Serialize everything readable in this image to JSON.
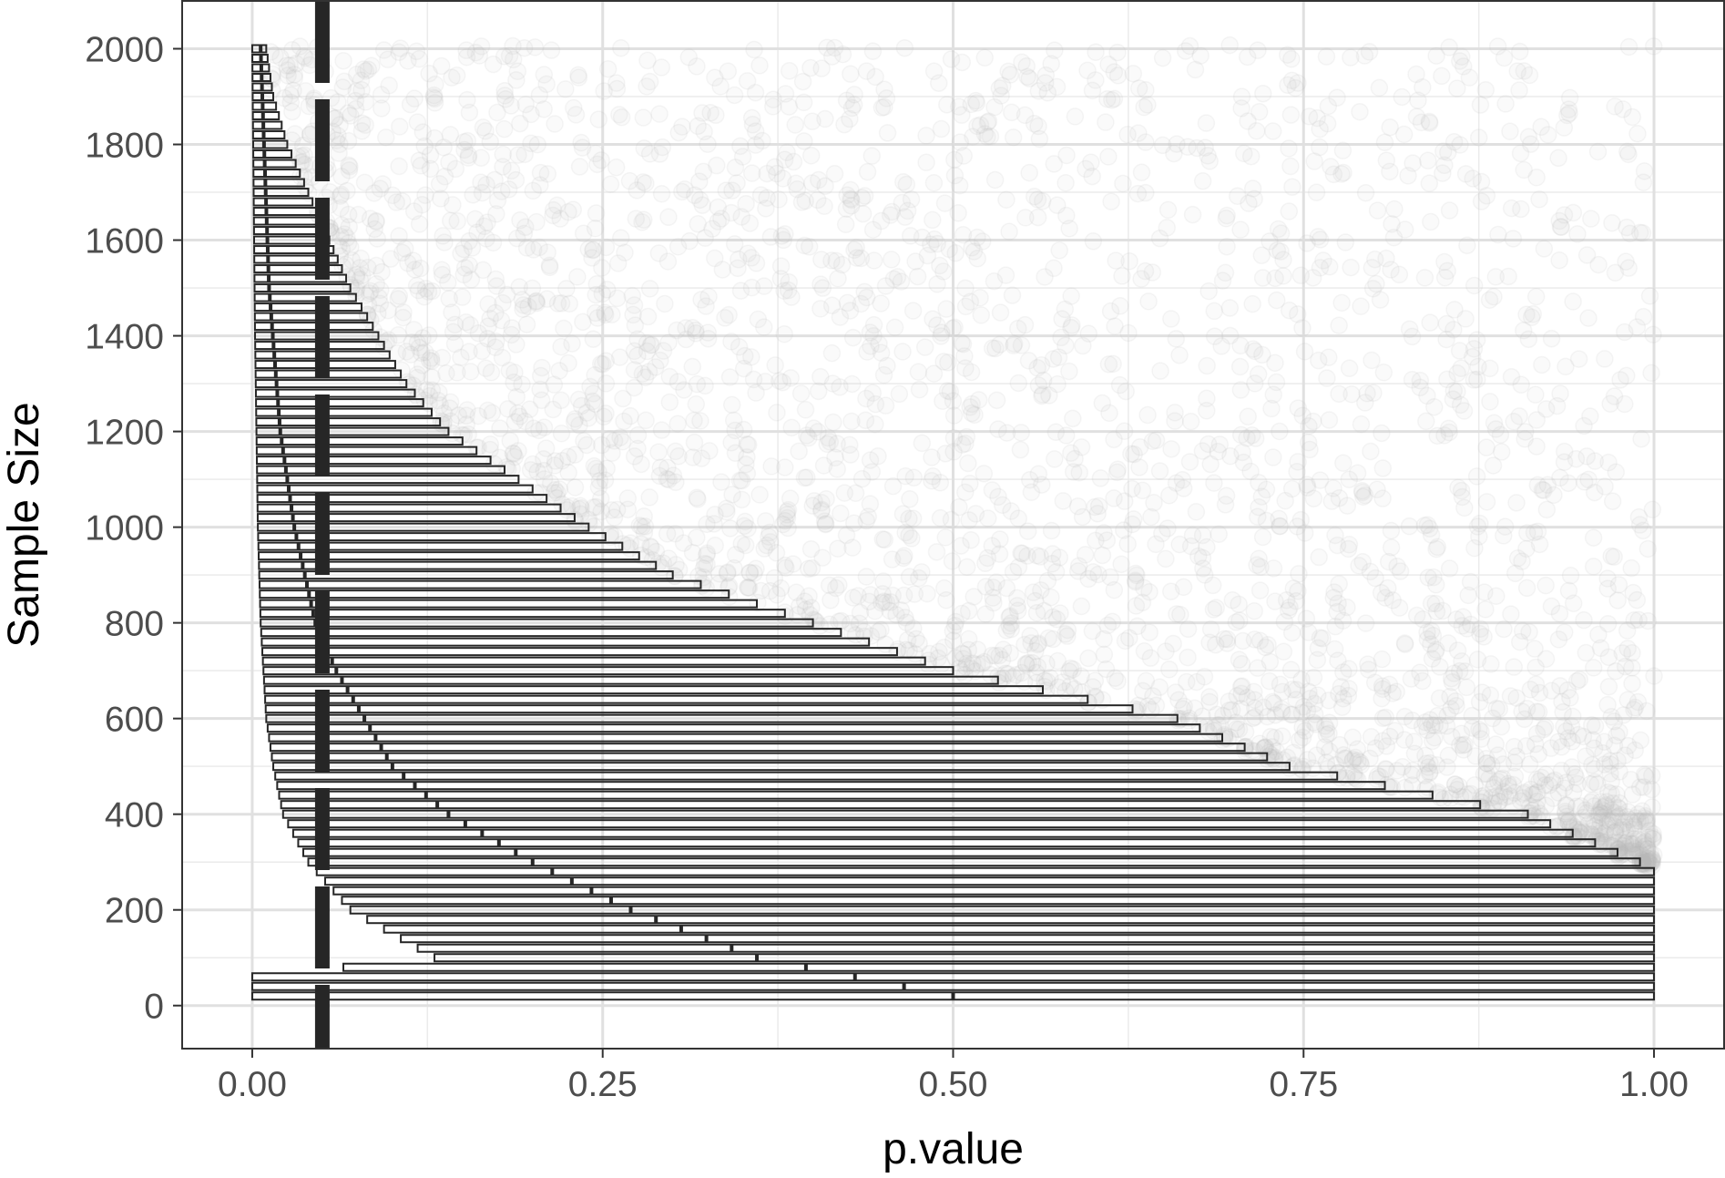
{
  "chart_data": {
    "type": "scatter",
    "xlabel": "p.value",
    "ylabel": "Sample Size",
    "xlim": [
      -0.05,
      1.05
    ],
    "ylim": [
      -90,
      2100
    ],
    "x_ticks": [
      {
        "value": 0.0,
        "label": "0.00"
      },
      {
        "value": 0.25,
        "label": "0.25"
      },
      {
        "value": 0.5,
        "label": "0.50"
      },
      {
        "value": 0.75,
        "label": "0.75"
      },
      {
        "value": 1.0,
        "label": "1.00"
      }
    ],
    "y_ticks": [
      {
        "value": 0,
        "label": "0"
      },
      {
        "value": 200,
        "label": "200"
      },
      {
        "value": 400,
        "label": "400"
      },
      {
        "value": 600,
        "label": "600"
      },
      {
        "value": 800,
        "label": "800"
      },
      {
        "value": 1000,
        "label": "1000"
      },
      {
        "value": 1200,
        "label": "1200"
      },
      {
        "value": 1400,
        "label": "1400"
      },
      {
        "value": 1600,
        "label": "1600"
      },
      {
        "value": 1800,
        "label": "1800"
      },
      {
        "value": 2000,
        "label": "2000"
      }
    ],
    "grid": true,
    "reference_line": {
      "x": 0.05,
      "style": "dashed",
      "color": "#262626"
    },
    "interval_bars": {
      "description_values": "p.value ranges per sample size",
      "sample_sizes_from": 20,
      "sample_sizes_to": 2000,
      "sample_size_step": 20,
      "upper_anchor_points": [
        [
          20,
          1.0
        ],
        [
          280,
          1.0
        ],
        [
          300,
          0.99
        ],
        [
          400,
          0.91
        ],
        [
          500,
          0.74
        ],
        [
          600,
          0.66
        ],
        [
          700,
          0.5
        ],
        [
          800,
          0.4
        ],
        [
          900,
          0.3
        ],
        [
          1000,
          0.24
        ],
        [
          1100,
          0.19
        ],
        [
          1200,
          0.14
        ],
        [
          1300,
          0.11
        ],
        [
          1400,
          0.09
        ],
        [
          1500,
          0.07
        ],
        [
          1600,
          0.055
        ],
        [
          1700,
          0.04
        ],
        [
          1800,
          0.025
        ],
        [
          1900,
          0.015
        ],
        [
          2000,
          0.01
        ]
      ],
      "lower_anchor_points": [
        [
          20,
          0.0
        ],
        [
          60,
          0.0
        ],
        [
          100,
          0.13
        ],
        [
          200,
          0.07
        ],
        [
          300,
          0.04
        ],
        [
          400,
          0.022
        ],
        [
          500,
          0.015
        ],
        [
          600,
          0.01
        ],
        [
          800,
          0.006
        ],
        [
          1000,
          0.004
        ],
        [
          1400,
          0.002
        ],
        [
          2000,
          0.0
        ]
      ],
      "median_anchor_points": [
        [
          20,
          0.5
        ],
        [
          100,
          0.36
        ],
        [
          200,
          0.27
        ],
        [
          300,
          0.2
        ],
        [
          400,
          0.14
        ],
        [
          500,
          0.1
        ],
        [
          600,
          0.08
        ],
        [
          700,
          0.06
        ],
        [
          800,
          0.045
        ],
        [
          1000,
          0.03
        ],
        [
          1200,
          0.02
        ],
        [
          1500,
          0.012
        ],
        [
          2000,
          0.006
        ]
      ],
      "color": "#262626"
    },
    "points": {
      "series_color": "#bdbdbd",
      "opacity": 0.07,
      "sample_size_range": [
        300,
        2000
      ],
      "p_value_range": [
        0.0,
        1.0
      ]
    }
  }
}
